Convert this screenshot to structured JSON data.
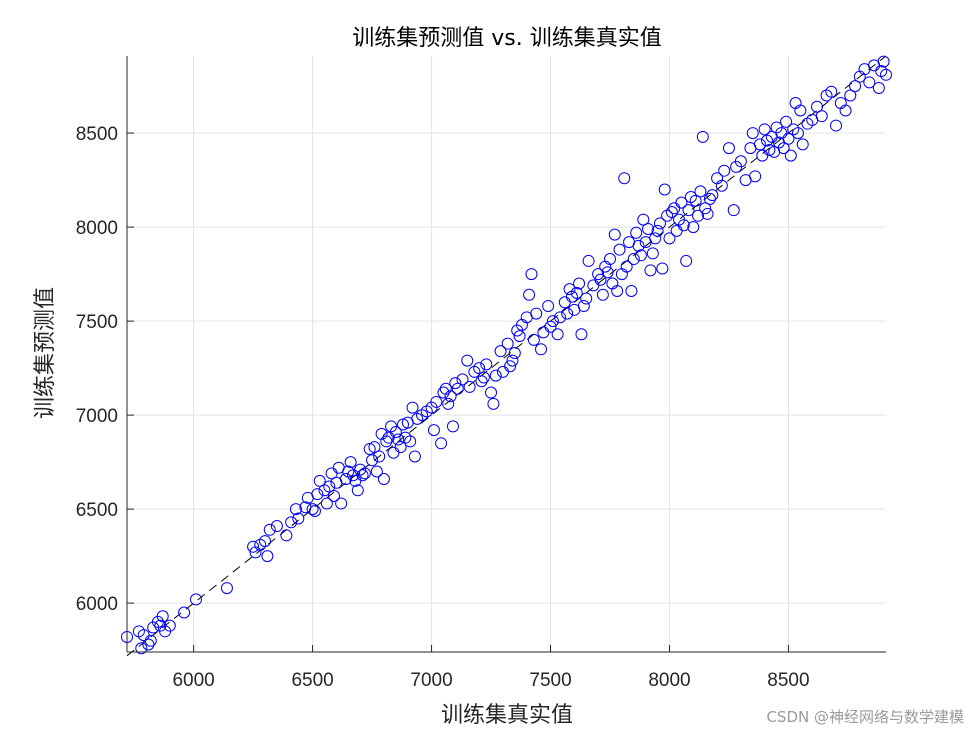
{
  "chart_data": {
    "type": "scatter",
    "title": "训练集预测值 vs. 训练集真实值",
    "xlabel": "训练集真实值",
    "ylabel": "训练集预测值",
    "xlim": [
      5720,
      8910
    ],
    "ylim": [
      5740,
      8910
    ],
    "xticks": [
      6000,
      6500,
      7000,
      7500,
      8000,
      8500
    ],
    "yticks": [
      6000,
      6500,
      7000,
      7500,
      8000,
      8500
    ],
    "grid": true,
    "marker_color": "#0000ff",
    "reference_line": {
      "style": "dashed",
      "color": "#000000",
      "from": [
        5720,
        5720
      ],
      "to": [
        8910,
        8910
      ]
    },
    "series": [
      {
        "points": [
          [
            5720,
            5820
          ],
          [
            5770,
            5850
          ],
          [
            5780,
            5760
          ],
          [
            5790,
            5830
          ],
          [
            5810,
            5780
          ],
          [
            5820,
            5800
          ],
          [
            5830,
            5870
          ],
          [
            5850,
            5900
          ],
          [
            5860,
            5880
          ],
          [
            5870,
            5930
          ],
          [
            5880,
            5850
          ],
          [
            5900,
            5880
          ],
          [
            5960,
            5950
          ],
          [
            6010,
            6020
          ],
          [
            6140,
            6080
          ],
          [
            6250,
            6300
          ],
          [
            6260,
            6270
          ],
          [
            6280,
            6310
          ],
          [
            6300,
            6330
          ],
          [
            6310,
            6250
          ],
          [
            6320,
            6390
          ],
          [
            6350,
            6410
          ],
          [
            6390,
            6360
          ],
          [
            6410,
            6430
          ],
          [
            6430,
            6500
          ],
          [
            6440,
            6450
          ],
          [
            6470,
            6510
          ],
          [
            6480,
            6560
          ],
          [
            6500,
            6500
          ],
          [
            6510,
            6490
          ],
          [
            6520,
            6580
          ],
          [
            6530,
            6650
          ],
          [
            6550,
            6600
          ],
          [
            6560,
            6530
          ],
          [
            6570,
            6620
          ],
          [
            6580,
            6690
          ],
          [
            6590,
            6570
          ],
          [
            6600,
            6640
          ],
          [
            6610,
            6720
          ],
          [
            6620,
            6530
          ],
          [
            6640,
            6660
          ],
          [
            6650,
            6700
          ],
          [
            6660,
            6750
          ],
          [
            6670,
            6680
          ],
          [
            6680,
            6650
          ],
          [
            6690,
            6600
          ],
          [
            6700,
            6710
          ],
          [
            6710,
            6680
          ],
          [
            6720,
            6690
          ],
          [
            6740,
            6820
          ],
          [
            6750,
            6760
          ],
          [
            6760,
            6830
          ],
          [
            6770,
            6700
          ],
          [
            6780,
            6780
          ],
          [
            6790,
            6900
          ],
          [
            6800,
            6660
          ],
          [
            6810,
            6860
          ],
          [
            6820,
            6880
          ],
          [
            6830,
            6940
          ],
          [
            6840,
            6800
          ],
          [
            6850,
            6910
          ],
          [
            6860,
            6870
          ],
          [
            6870,
            6830
          ],
          [
            6880,
            6950
          ],
          [
            6890,
            6880
          ],
          [
            6900,
            6960
          ],
          [
            6910,
            6860
          ],
          [
            6920,
            7040
          ],
          [
            6930,
            6780
          ],
          [
            6940,
            6980
          ],
          [
            6960,
            7000
          ],
          [
            6980,
            7020
          ],
          [
            7000,
            7040
          ],
          [
            7010,
            6920
          ],
          [
            7020,
            7070
          ],
          [
            7040,
            6850
          ],
          [
            7050,
            7120
          ],
          [
            7060,
            7140
          ],
          [
            7070,
            7060
          ],
          [
            7080,
            7100
          ],
          [
            7090,
            6940
          ],
          [
            7100,
            7170
          ],
          [
            7110,
            7140
          ],
          [
            7130,
            7190
          ],
          [
            7150,
            7290
          ],
          [
            7160,
            7150
          ],
          [
            7180,
            7230
          ],
          [
            7200,
            7250
          ],
          [
            7210,
            7180
          ],
          [
            7220,
            7200
          ],
          [
            7230,
            7270
          ],
          [
            7250,
            7120
          ],
          [
            7260,
            7060
          ],
          [
            7270,
            7210
          ],
          [
            7290,
            7340
          ],
          [
            7300,
            7230
          ],
          [
            7320,
            7380
          ],
          [
            7330,
            7260
          ],
          [
            7340,
            7290
          ],
          [
            7350,
            7330
          ],
          [
            7360,
            7450
          ],
          [
            7370,
            7420
          ],
          [
            7380,
            7480
          ],
          [
            7400,
            7520
          ],
          [
            7410,
            7640
          ],
          [
            7420,
            7750
          ],
          [
            7430,
            7400
          ],
          [
            7440,
            7540
          ],
          [
            7460,
            7350
          ],
          [
            7470,
            7440
          ],
          [
            7490,
            7580
          ],
          [
            7500,
            7470
          ],
          [
            7510,
            7500
          ],
          [
            7530,
            7430
          ],
          [
            7540,
            7520
          ],
          [
            7560,
            7600
          ],
          [
            7570,
            7540
          ],
          [
            7580,
            7670
          ],
          [
            7590,
            7630
          ],
          [
            7600,
            7560
          ],
          [
            7610,
            7650
          ],
          [
            7620,
            7700
          ],
          [
            7630,
            7430
          ],
          [
            7640,
            7580
          ],
          [
            7650,
            7620
          ],
          [
            7660,
            7820
          ],
          [
            7680,
            7690
          ],
          [
            7700,
            7750
          ],
          [
            7710,
            7720
          ],
          [
            7720,
            7640
          ],
          [
            7730,
            7790
          ],
          [
            7740,
            7760
          ],
          [
            7750,
            7830
          ],
          [
            7760,
            7700
          ],
          [
            7770,
            7960
          ],
          [
            7780,
            7660
          ],
          [
            7790,
            7880
          ],
          [
            7800,
            7750
          ],
          [
            7810,
            8260
          ],
          [
            7820,
            7790
          ],
          [
            7830,
            7920
          ],
          [
            7840,
            7660
          ],
          [
            7850,
            7830
          ],
          [
            7860,
            7970
          ],
          [
            7870,
            7900
          ],
          [
            7880,
            7850
          ],
          [
            7890,
            8040
          ],
          [
            7900,
            7920
          ],
          [
            7910,
            7990
          ],
          [
            7920,
            7770
          ],
          [
            7930,
            7860
          ],
          [
            7940,
            7940
          ],
          [
            7950,
            7980
          ],
          [
            7960,
            8020
          ],
          [
            7970,
            7780
          ],
          [
            7980,
            8200
          ],
          [
            7990,
            8060
          ],
          [
            8000,
            7940
          ],
          [
            8010,
            8080
          ],
          [
            8020,
            8100
          ],
          [
            8030,
            7980
          ],
          [
            8040,
            8040
          ],
          [
            8050,
            8130
          ],
          [
            8060,
            8010
          ],
          [
            8070,
            7820
          ],
          [
            8080,
            8090
          ],
          [
            8090,
            8160
          ],
          [
            8100,
            8000
          ],
          [
            8110,
            8140
          ],
          [
            8120,
            8060
          ],
          [
            8130,
            8190
          ],
          [
            8140,
            8480
          ],
          [
            8150,
            8100
          ],
          [
            8160,
            8070
          ],
          [
            8170,
            8150
          ],
          [
            8180,
            8170
          ],
          [
            8200,
            8260
          ],
          [
            8220,
            8220
          ],
          [
            8230,
            8300
          ],
          [
            8250,
            8420
          ],
          [
            8270,
            8090
          ],
          [
            8280,
            8320
          ],
          [
            8300,
            8350
          ],
          [
            8320,
            8250
          ],
          [
            8340,
            8420
          ],
          [
            8350,
            8500
          ],
          [
            8360,
            8270
          ],
          [
            8380,
            8440
          ],
          [
            8390,
            8380
          ],
          [
            8400,
            8520
          ],
          [
            8410,
            8460
          ],
          [
            8420,
            8410
          ],
          [
            8430,
            8480
          ],
          [
            8440,
            8400
          ],
          [
            8450,
            8530
          ],
          [
            8460,
            8450
          ],
          [
            8470,
            8500
          ],
          [
            8480,
            8420
          ],
          [
            8490,
            8560
          ],
          [
            8500,
            8470
          ],
          [
            8510,
            8380
          ],
          [
            8520,
            8520
          ],
          [
            8530,
            8660
          ],
          [
            8540,
            8500
          ],
          [
            8550,
            8620
          ],
          [
            8560,
            8440
          ],
          [
            8580,
            8550
          ],
          [
            8600,
            8570
          ],
          [
            8620,
            8640
          ],
          [
            8640,
            8590
          ],
          [
            8660,
            8700
          ],
          [
            8680,
            8720
          ],
          [
            8700,
            8540
          ],
          [
            8720,
            8660
          ],
          [
            8740,
            8620
          ],
          [
            8760,
            8700
          ],
          [
            8780,
            8750
          ],
          [
            8800,
            8800
          ],
          [
            8820,
            8840
          ],
          [
            8840,
            8770
          ],
          [
            8860,
            8860
          ],
          [
            8880,
            8740
          ],
          [
            8890,
            8830
          ],
          [
            8900,
            8880
          ],
          [
            8910,
            8810
          ]
        ]
      }
    ]
  },
  "watermark": "CSDN @神经网络与数学建模"
}
